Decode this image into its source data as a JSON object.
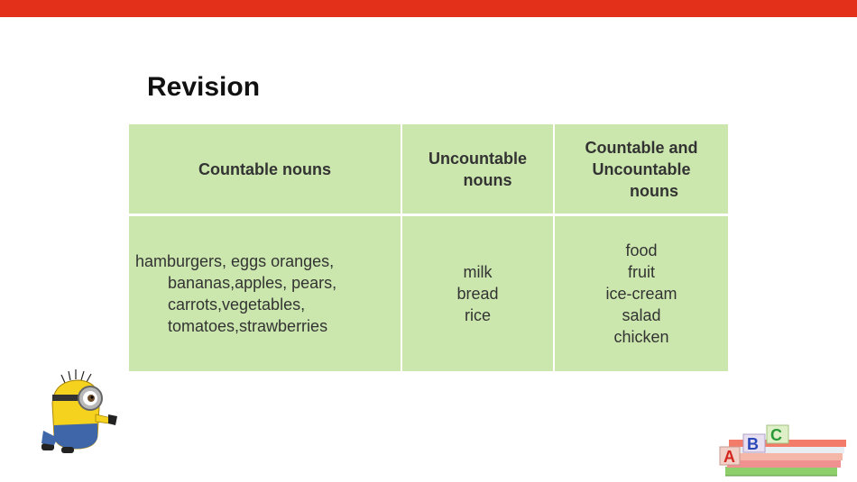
{
  "slide": {
    "title": "Revision"
  },
  "table": {
    "headers": [
      "Countable nouns",
      "Uncountable nouns",
      "Countable and Uncountable nouns"
    ],
    "headers_lines": [
      [
        "Countable nouns"
      ],
      [
        "Uncountable",
        "nouns"
      ],
      [
        "Countable and",
        "Uncountable",
        "nouns"
      ]
    ],
    "countable_lines": [
      "hamburgers, eggs oranges,",
      "bananas,apples, pears,",
      "carrots,vegetables,",
      "tomatoes,strawberries"
    ],
    "uncountable": [
      "milk",
      "bread",
      "rice"
    ],
    "both": [
      "food",
      "fruit",
      "ice-cream",
      "salad",
      "chicken"
    ]
  },
  "colors": {
    "accent_bar": "#e2301a",
    "cell_fill": "#cbe7ad"
  },
  "decorations": [
    "minion-illustration",
    "abc-blocks-on-books"
  ]
}
